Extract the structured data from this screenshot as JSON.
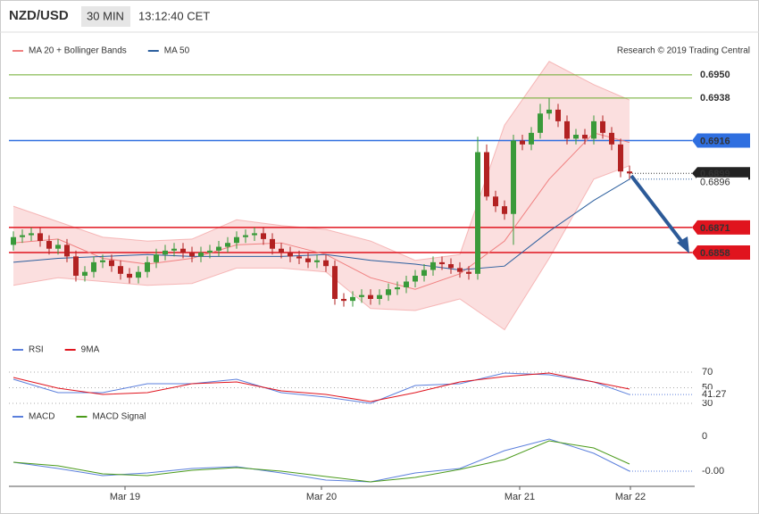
{
  "header": {
    "symbol": "NZD/USD",
    "interval": "30 MIN",
    "time": "13:12:40 CET",
    "credit": "Research © 2019 Trading Central"
  },
  "chart_data": [
    {
      "type": "candlestick",
      "up_color": "#3a9a3a",
      "down_color": "#b22222",
      "ohlc": {
        "open": [
          0.6862,
          0.6866,
          0.6867,
          0.6868,
          0.6864,
          0.686,
          0.6862,
          0.6856,
          0.6846,
          0.6848,
          0.6853,
          0.6854,
          0.6851,
          0.6847,
          0.6845,
          0.6848,
          0.6853,
          0.6857,
          0.6859,
          0.686,
          0.6858,
          0.6856,
          0.6858,
          0.6859,
          0.6861,
          0.6863,
          0.6866,
          0.6867,
          0.6868,
          0.6865,
          0.686,
          0.6858,
          0.6856,
          0.6855,
          0.6853,
          0.6854,
          0.6851,
          0.6834,
          0.6833,
          0.6835,
          0.6836,
          0.6834,
          0.6836,
          0.6839,
          0.684,
          0.6843,
          0.6846,
          0.6849,
          0.6853,
          0.6852,
          0.685,
          0.6848,
          0.6847,
          0.691,
          0.6887,
          0.6882,
          0.6878,
          0.6916,
          0.6914,
          0.692,
          0.693,
          0.6932,
          0.6926,
          0.6917,
          0.6919,
          0.6917,
          0.6926,
          0.692,
          0.6914,
          0.69
        ],
        "high": [
          0.6869,
          0.687,
          0.6871,
          0.6871,
          0.6867,
          0.6865,
          0.6865,
          0.6859,
          0.6851,
          0.6856,
          0.6857,
          0.6857,
          0.6854,
          0.685,
          0.6851,
          0.6856,
          0.686,
          0.6862,
          0.6863,
          0.6863,
          0.6861,
          0.6861,
          0.6862,
          0.6864,
          0.6866,
          0.6869,
          0.687,
          0.6871,
          0.6871,
          0.6868,
          0.6863,
          0.6861,
          0.6859,
          0.6858,
          0.6857,
          0.6857,
          0.6854,
          0.6837,
          0.6838,
          0.6839,
          0.6839,
          0.6839,
          0.6842,
          0.6843,
          0.6846,
          0.6849,
          0.6852,
          0.6856,
          0.6856,
          0.6855,
          0.6853,
          0.6851,
          0.6918,
          0.6914,
          0.689,
          0.6885,
          0.6919,
          0.6919,
          0.6923,
          0.6935,
          0.6938,
          0.6935,
          0.6929,
          0.6922,
          0.6922,
          0.6929,
          0.6929,
          0.6923,
          0.6917,
          0.6903
        ],
        "low": [
          0.6859,
          0.6863,
          0.6864,
          0.6861,
          0.6857,
          0.6857,
          0.6853,
          0.6843,
          0.6843,
          0.6845,
          0.685,
          0.6848,
          0.6844,
          0.6842,
          0.6842,
          0.6845,
          0.685,
          0.6854,
          0.6856,
          0.6855,
          0.6853,
          0.6853,
          0.6855,
          0.6856,
          0.6858,
          0.686,
          0.6863,
          0.6864,
          0.6862,
          0.6857,
          0.6855,
          0.6853,
          0.6852,
          0.685,
          0.685,
          0.6848,
          0.6831,
          0.683,
          0.683,
          0.6832,
          0.6831,
          0.6831,
          0.6833,
          0.6836,
          0.6837,
          0.684,
          0.6843,
          0.6846,
          0.6849,
          0.6847,
          0.6845,
          0.6844,
          0.6844,
          0.6885,
          0.6879,
          0.6875,
          0.6862,
          0.6911,
          0.6911,
          0.6917,
          0.6927,
          0.6923,
          0.6914,
          0.6914,
          0.6914,
          0.6914,
          0.6917,
          0.6911,
          0.6897,
          0.6896
        ],
        "close": [
          0.6866,
          0.6867,
          0.6868,
          0.6864,
          0.686,
          0.6862,
          0.6856,
          0.6846,
          0.6848,
          0.6853,
          0.6854,
          0.6851,
          0.6847,
          0.6845,
          0.6848,
          0.6853,
          0.6857,
          0.6859,
          0.686,
          0.6858,
          0.6856,
          0.6858,
          0.6859,
          0.6861,
          0.6863,
          0.6866,
          0.6867,
          0.6868,
          0.6865,
          0.686,
          0.6858,
          0.6856,
          0.6855,
          0.6853,
          0.6854,
          0.6851,
          0.6834,
          0.6833,
          0.6835,
          0.6836,
          0.6834,
          0.6836,
          0.6839,
          0.684,
          0.6843,
          0.6846,
          0.6849,
          0.6853,
          0.6852,
          0.685,
          0.6848,
          0.6847,
          0.691,
          0.6887,
          0.6882,
          0.6878,
          0.6916,
          0.6914,
          0.692,
          0.693,
          0.6932,
          0.6926,
          0.6917,
          0.6919,
          0.6917,
          0.6926,
          0.692,
          0.6914,
          0.69,
          0.6899
        ]
      },
      "line_x": [
        0,
        5,
        10,
        15,
        20,
        25,
        30,
        35,
        40,
        45,
        50,
        55,
        60,
        65,
        69
      ],
      "series": [
        {
          "name": "MA 20 + Bollinger Bands",
          "color": "#f08080",
          "values": [
            0.6863,
            0.6865,
            0.6855,
            0.6852,
            0.6855,
            0.6862,
            0.6863,
            0.6857,
            0.6845,
            0.6839,
            0.6847,
            0.6864,
            0.6896,
            0.692,
            0.6915
          ],
          "upper": [
            0.6882,
            0.6874,
            0.6866,
            0.6864,
            0.6865,
            0.6875,
            0.6872,
            0.687,
            0.6864,
            0.6854,
            0.6857,
            0.6924,
            0.6957,
            0.6945,
            0.6937
          ],
          "lower": [
            0.6841,
            0.6845,
            0.6843,
            0.6841,
            0.6842,
            0.685,
            0.685,
            0.6848,
            0.6829,
            0.6828,
            0.6834,
            0.6818,
            0.6855,
            0.6896,
            0.6903
          ]
        },
        {
          "name": "MA 50",
          "color": "#2c5f9e",
          "values": [
            0.6853,
            0.6855,
            0.6856,
            0.6857,
            0.6856,
            0.6856,
            0.6856,
            0.6857,
            0.6854,
            0.6852,
            0.6849,
            0.6851,
            0.6869,
            0.6885,
            0.6896
          ]
        }
      ],
      "levels": [
        {
          "value": 0.695,
          "label": "0.6950",
          "color": "#6aaa2a",
          "tag": false
        },
        {
          "value": 0.6938,
          "label": "0.6938",
          "color": "#6aaa2a",
          "tag": false
        },
        {
          "value": 0.6916,
          "label": "0.6916",
          "color": "#2f6fe0",
          "tag": true
        },
        {
          "value": 0.6871,
          "label": "0.6871",
          "color": "#e0141e",
          "tag": true
        },
        {
          "value": 0.6858,
          "label": "0.6858",
          "color": "#e0141e",
          "tag": true
        }
      ],
      "current_price": {
        "value": 0.6899,
        "label": "0.6899"
      },
      "ma50_label": {
        "value": 0.6896,
        "label": "0.6896"
      },
      "xlim": [
        -0.5,
        76.3
      ],
      "ylim": [
        0.68132,
        0.69703
      ],
      "xticks": [
        {
          "value": 12.5,
          "label": "Mar 19"
        },
        {
          "value": 34.5,
          "label": "Mar 20"
        },
        {
          "value": 56.7,
          "label": "Mar 21"
        },
        {
          "value": 69.1,
          "label": "Mar 22"
        }
      ]
    },
    {
      "type": "line",
      "x": [
        0,
        5,
        10,
        15,
        20,
        25,
        30,
        35,
        40,
        45,
        50,
        55,
        60,
        65,
        69
      ],
      "series": [
        {
          "name": "RSI",
          "color": "#5b7fdc",
          "values": [
            60.9,
            43.7,
            43.7,
            55.1,
            55.1,
            60.9,
            43.7,
            38,
            30,
            52.9,
            55.1,
            68.9,
            66.6,
            57.4,
            41.27
          ]
        },
        {
          "name": "9MA",
          "color": "#e0141e",
          "values": [
            63.1,
            49.4,
            41.4,
            43.7,
            55.1,
            57.4,
            46,
            41.4,
            32.3,
            43.7,
            57.4,
            64.3,
            68.9,
            57.4,
            48.3
          ]
        }
      ],
      "ylim": [
        18.6,
        83.7
      ],
      "yticks": [
        70,
        50,
        30
      ],
      "grid": true
    },
    {
      "type": "line",
      "x": [
        0,
        5,
        10,
        15,
        20,
        25,
        30,
        35,
        40,
        45,
        50,
        55,
        60,
        65,
        69
      ],
      "series": [
        {
          "name": "MACD",
          "color": "#5b7fdc",
          "values": [
            -0.0029,
            -0.0036,
            -0.0044,
            -0.0041,
            -0.0036,
            -0.0034,
            -0.0041,
            -0.0049,
            -0.0051,
            -0.0041,
            -0.0036,
            -0.0016,
            -0.0003,
            -0.0019,
            -0.0039
          ]
        },
        {
          "name": "MACD Signal",
          "color": "#4a9a1a",
          "values": [
            -0.0029,
            -0.0033,
            -0.0042,
            -0.0044,
            -0.0038,
            -0.0035,
            -0.0039,
            -0.0045,
            -0.0051,
            -0.0046,
            -0.0037,
            -0.0026,
            -0.0005,
            -0.0013,
            -0.0031
          ]
        }
      ],
      "current_label": {
        "value": -0.0039,
        "label": "-0.00"
      },
      "ylim": [
        -0.0056,
        0.0009
      ],
      "yticks": [
        0
      ]
    }
  ]
}
